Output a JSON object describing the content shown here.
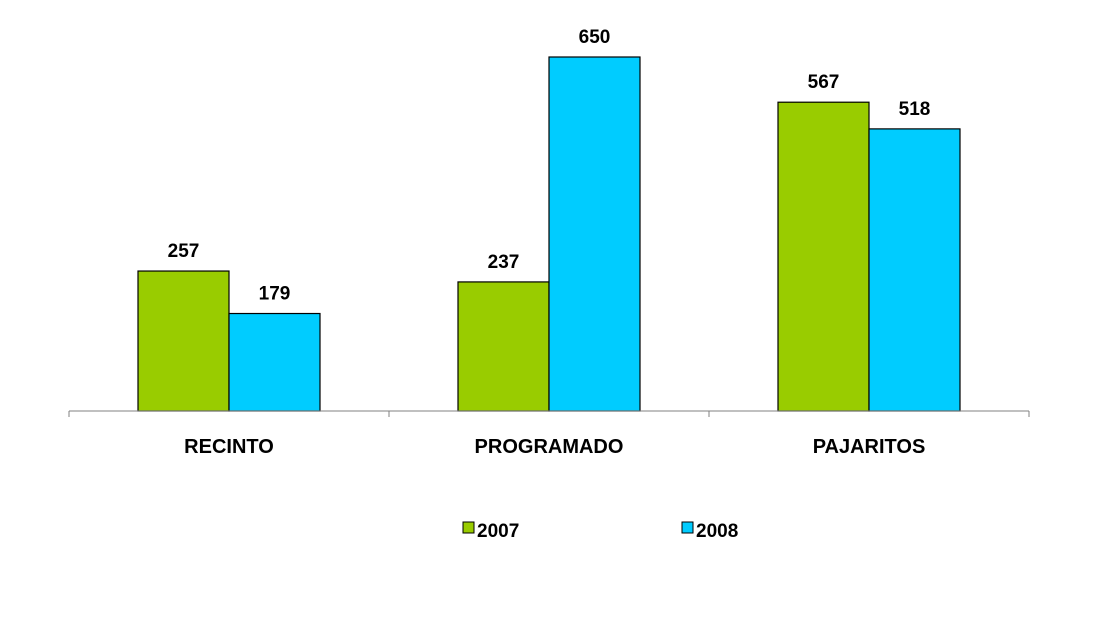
{
  "chart_data": {
    "type": "bar",
    "categories": [
      "RECINTO",
      "PROGRAMADO",
      "PAJARITOS"
    ],
    "series": [
      {
        "name": "2007",
        "values": [
          257,
          237,
          567
        ],
        "color": "#99cc00"
      },
      {
        "name": "2008",
        "values": [
          179,
          650,
          518
        ],
        "color": "#00ccff"
      }
    ],
    "ylim": [
      0,
      650
    ],
    "grid": false,
    "legend_position": "bottom",
    "data_labels": true
  }
}
